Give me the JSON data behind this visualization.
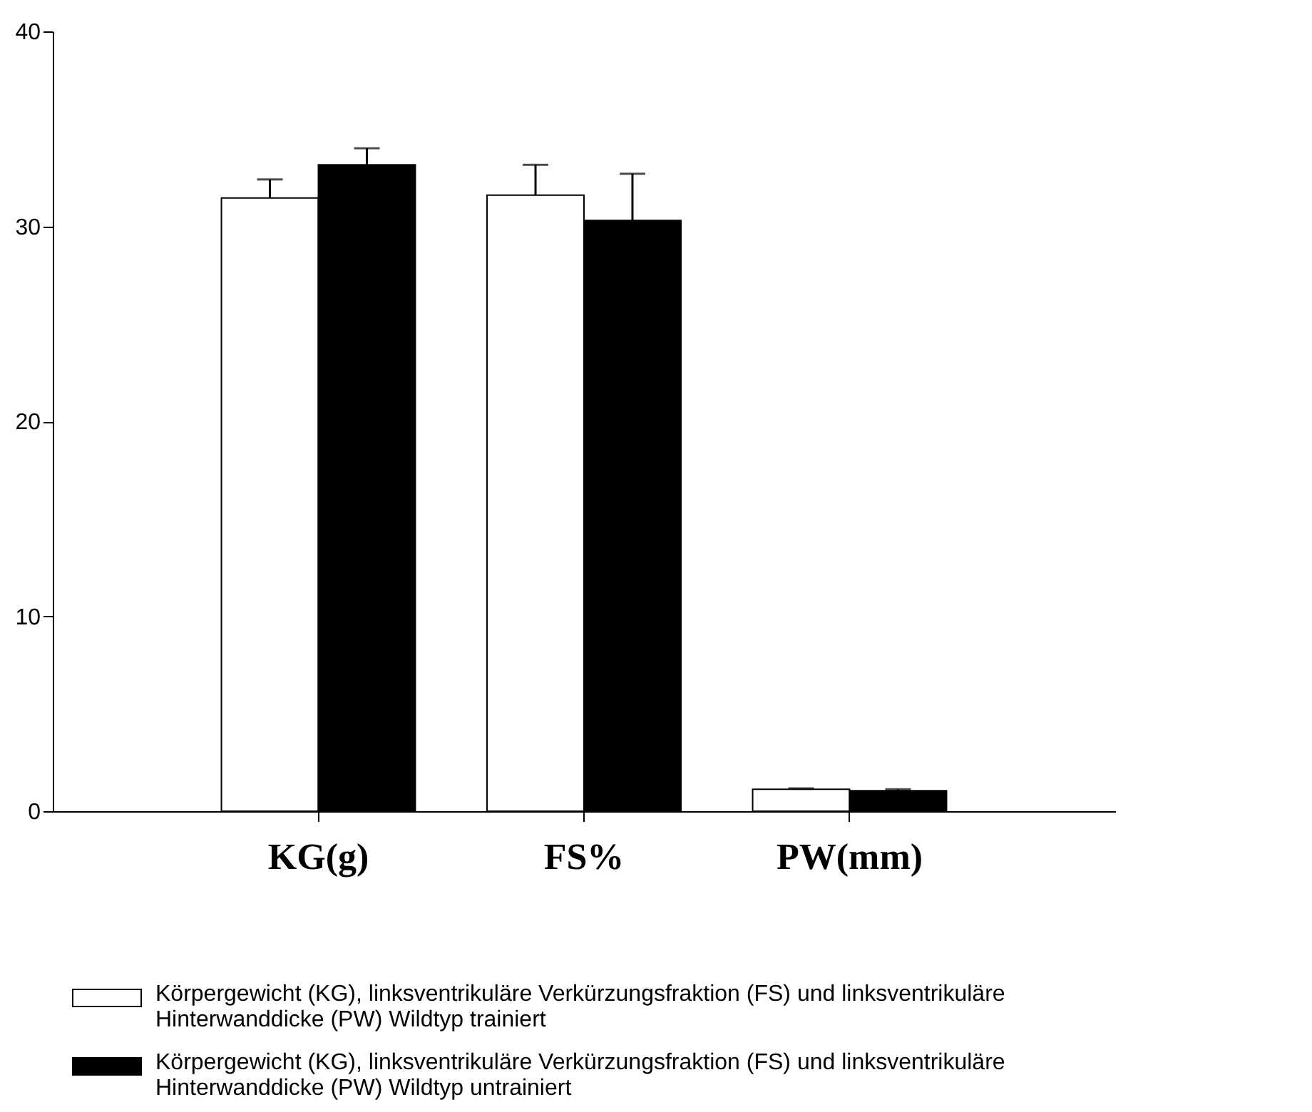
{
  "chart_data": {
    "type": "bar",
    "categories": [
      "KG(g)",
      "FS%",
      "PW(mm)"
    ],
    "series": [
      {
        "name": "Körpergewicht (KG), linksventrikuläre Verkürzungsfraktion (FS) und linksventrikuläre Hinterwanddicke (PW) Wildtyp trainiert",
        "color": "#ffffff",
        "values": [
          31.45,
          31.6,
          1.12
        ],
        "errors": [
          0.95,
          1.55,
          0.05
        ]
      },
      {
        "name": "Körpergewicht (KG), linksventrikuläre Verkürzungsfraktion (FS) und linksventrikuläre Hinterwanddicke (PW) Wildtyp untrainiert",
        "color": "#000000",
        "values": [
          33.15,
          30.3,
          1.05
        ],
        "errors": [
          0.85,
          2.4,
          0.07
        ]
      }
    ],
    "ylim": [
      0,
      40
    ],
    "yticks": [
      0,
      10,
      20,
      30,
      40
    ],
    "grid": false,
    "legend": "bottom"
  }
}
